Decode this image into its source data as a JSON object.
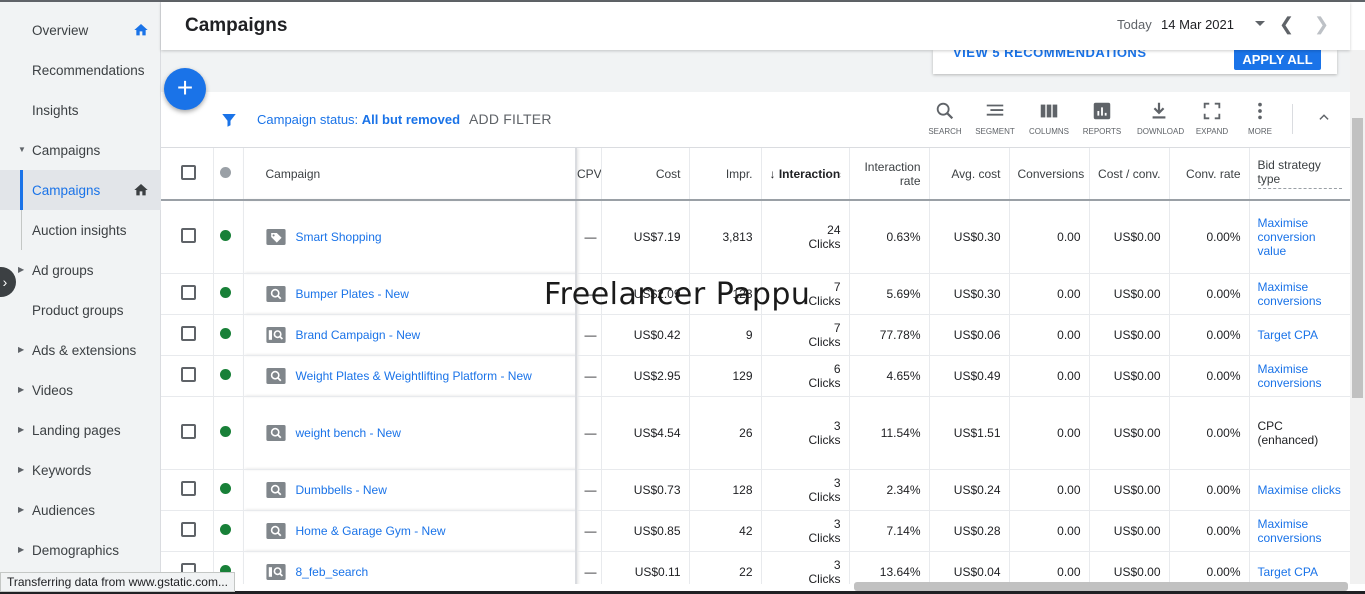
{
  "sidebar": {
    "items": [
      {
        "label": "Overview",
        "has_home": true
      },
      {
        "label": "Recommendations"
      },
      {
        "label": "Insights"
      },
      {
        "label": "Campaigns",
        "expanded": true
      },
      {
        "label": "Campaigns",
        "active": true,
        "has_home": true
      },
      {
        "label": "Auction insights",
        "sub": true
      },
      {
        "label": "Ad groups",
        "collapsible": true
      },
      {
        "label": "Product groups"
      },
      {
        "label": "Ads & extensions",
        "collapsible": true
      },
      {
        "label": "Videos",
        "collapsible": true
      },
      {
        "label": "Landing pages",
        "collapsible": true
      },
      {
        "label": "Keywords",
        "collapsible": true
      },
      {
        "label": "Audiences",
        "collapsible": true
      },
      {
        "label": "Demographics",
        "collapsible": true
      }
    ],
    "collapse_icon": "chevron-right-icon"
  },
  "header": {
    "title": "Campaigns",
    "today_label": "Today",
    "date": "14 Mar 2021"
  },
  "recommendations": {
    "link": "VIEW 5 RECOMMENDATIONS",
    "apply": "APPLY ALL"
  },
  "fab_label": "+",
  "filter": {
    "prefix": "Campaign status: ",
    "value": "All but removed",
    "add": "ADD FILTER"
  },
  "toolbar": {
    "search": "SEARCH",
    "segment": "SEGMENT",
    "columns": "COLUMNS",
    "reports": "REPORTS",
    "download": "DOWNLOAD",
    "expand": "EXPAND",
    "more": "MORE"
  },
  "table": {
    "headers": {
      "campaign": "Campaign",
      "cpv": "CPV",
      "cost": "Cost",
      "impr": "Impr.",
      "interactions": "Interactions",
      "interaction_rate": "Interaction rate",
      "avg_cost": "Avg. cost",
      "conversions": "Conversions",
      "cost_conv": "Cost / conv.",
      "conv_rate": "Conv. rate",
      "bid_strategy": "Bid strategy type"
    },
    "rows": [
      {
        "name": "Smart Shopping",
        "icon": "shopping-tag-icon",
        "cpv": "—",
        "cost": "US$7.19",
        "impr": "3,813",
        "int": "24",
        "int_unit": "Clicks",
        "rate": "0.63%",
        "avg": "US$0.30",
        "conv": "0.00",
        "cpc": "US$0.00",
        "crate": "0.00%",
        "strategy": "Maximise conversion value",
        "link": true
      },
      {
        "name": "Bumper Plates - New",
        "icon": "search-campaign-icon",
        "cpv": "—",
        "cost": "US$2.09",
        "impr": "123",
        "int": "7",
        "int_unit": "Clicks",
        "rate": "5.69%",
        "avg": "US$0.30",
        "conv": "0.00",
        "cpc": "US$0.00",
        "crate": "0.00%",
        "strategy": "Maximise conversions",
        "link": true
      },
      {
        "name": "Brand Campaign - New",
        "icon": "search-ads-icon",
        "cpv": "—",
        "cost": "US$0.42",
        "impr": "9",
        "int": "7",
        "int_unit": "Clicks",
        "rate": "77.78%",
        "avg": "US$0.06",
        "conv": "0.00",
        "cpc": "US$0.00",
        "crate": "0.00%",
        "strategy": "Target CPA",
        "link": true
      },
      {
        "name": "Weight Plates & Weightlifting Platform - New",
        "icon": "search-campaign-icon",
        "cpv": "—",
        "cost": "US$2.95",
        "impr": "129",
        "int": "6",
        "int_unit": "Clicks",
        "rate": "4.65%",
        "avg": "US$0.49",
        "conv": "0.00",
        "cpc": "US$0.00",
        "crate": "0.00%",
        "strategy": "Maximise conversions",
        "link": true
      },
      {
        "name": "weight bench - New",
        "icon": "search-campaign-icon",
        "cpv": "—",
        "cost": "US$4.54",
        "impr": "26",
        "int": "3",
        "int_unit": "Clicks",
        "rate": "11.54%",
        "avg": "US$1.51",
        "conv": "0.00",
        "cpc": "US$0.00",
        "crate": "0.00%",
        "strategy": "CPC (enhanced)",
        "link": false
      },
      {
        "name": "Dumbbells - New",
        "icon": "search-campaign-icon",
        "cpv": "—",
        "cost": "US$0.73",
        "impr": "128",
        "int": "3",
        "int_unit": "Clicks",
        "rate": "2.34%",
        "avg": "US$0.24",
        "conv": "0.00",
        "cpc": "US$0.00",
        "crate": "0.00%",
        "strategy": "Maximise clicks",
        "link": true
      },
      {
        "name": "Home & Garage Gym - New",
        "icon": "search-campaign-icon",
        "cpv": "—",
        "cost": "US$0.85",
        "impr": "42",
        "int": "3",
        "int_unit": "Clicks",
        "rate": "7.14%",
        "avg": "US$0.28",
        "conv": "0.00",
        "cpc": "US$0.00",
        "crate": "0.00%",
        "strategy": "Maximise conversions",
        "link": true
      },
      {
        "name": "8_feb_search",
        "icon": "search-ads-icon",
        "cpv": "—",
        "cost": "US$0.11",
        "impr": "22",
        "int": "3",
        "int_unit": "Clicks",
        "rate": "13.64%",
        "avg": "US$0.04",
        "conv": "0.00",
        "cpc": "US$0.00",
        "crate": "0.00%",
        "strategy": "Target CPA",
        "link": true
      }
    ]
  },
  "watermark": "Freelancer Pappu",
  "status_bar": "Transferring data from www.gstatic.com...",
  "colors": {
    "accent": "#1a73e8",
    "enabled": "#188038",
    "sidebar_bg": "#f1f3f4"
  }
}
